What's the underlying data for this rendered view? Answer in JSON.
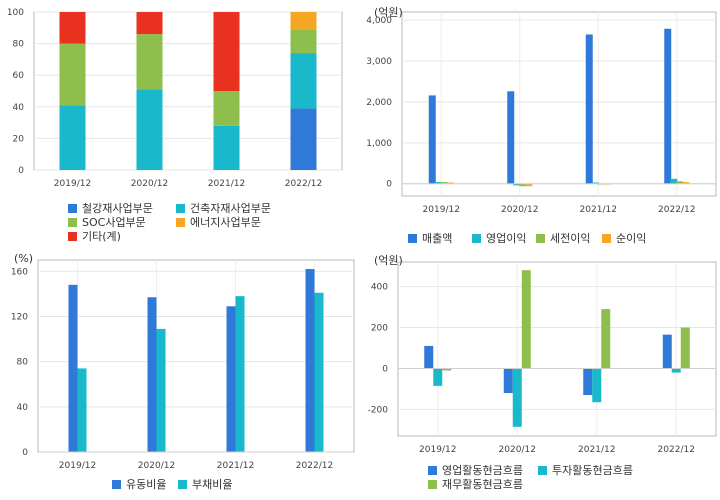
{
  "chart_data": [
    {
      "type": "bar",
      "stacked": true,
      "categories": [
        "2019/12",
        "2020/12",
        "2021/12",
        "2022/12"
      ],
      "ylim": [
        0,
        100
      ],
      "yticks": [
        "0",
        "20",
        "40",
        "60",
        "80",
        "100"
      ],
      "series": [
        {
          "name": "철강재사업부문",
          "color": "#2f7ad8",
          "values": [
            0,
            0,
            0,
            39
          ]
        },
        {
          "name": "건축자재사업부문",
          "color": "#19b8cb",
          "values": [
            41,
            51,
            28,
            35
          ]
        },
        {
          "name": "SOC사업부문",
          "color": "#8ebf4c",
          "values": [
            39,
            35,
            22,
            15
          ]
        },
        {
          "name": "에너지사업부문",
          "color": "#f5a623",
          "values": [
            0,
            0,
            0,
            11
          ]
        },
        {
          "name": "기타(계)",
          "color": "#e8311f",
          "values": [
            20,
            14,
            50,
            0
          ]
        }
      ],
      "legend_position": "bottom",
      "grid": true
    },
    {
      "type": "bar",
      "unit": "(억원)",
      "categories": [
        "2019/12",
        "2020/12",
        "2021/12",
        "2022/12"
      ],
      "ylim": [
        -300,
        4200
      ],
      "yticks": [
        "0",
        "1,000",
        "2,000",
        "3,000",
        "4,000"
      ],
      "series": [
        {
          "name": "매출액",
          "color": "#2f7ad8",
          "values": [
            2160,
            2260,
            3650,
            3790
          ]
        },
        {
          "name": "영업이익",
          "color": "#19b8cb",
          "values": [
            40,
            -40,
            30,
            120
          ]
        },
        {
          "name": "세전이익",
          "color": "#8ebf4c",
          "values": [
            40,
            -60,
            0,
            60
          ]
        },
        {
          "name": "순이익",
          "color": "#f5a623",
          "values": [
            30,
            -60,
            0,
            40
          ]
        }
      ],
      "legend_position": "bottom",
      "grid": true
    },
    {
      "type": "bar",
      "unit": "(%)",
      "categories": [
        "2019/12",
        "2020/12",
        "2021/12",
        "2022/12"
      ],
      "ylim": [
        0,
        170
      ],
      "yticks": [
        "0",
        "40",
        "80",
        "120",
        "160"
      ],
      "series": [
        {
          "name": "유동비율",
          "color": "#2f7ad8",
          "values": [
            148,
            137,
            129,
            162
          ]
        },
        {
          "name": "부채비율",
          "color": "#19b8cb",
          "values": [
            74,
            109,
            138,
            141
          ]
        }
      ],
      "legend_position": "bottom",
      "grid": true
    },
    {
      "type": "bar",
      "unit": "(억원)",
      "categories": [
        "2019/12",
        "2020/12",
        "2021/12",
        "2022/12"
      ],
      "ylim": [
        -330,
        520
      ],
      "yticks": [
        "-200",
        "0",
        "200",
        "400"
      ],
      "series": [
        {
          "name": "영업활동현금흐름",
          "color": "#2f7ad8",
          "values": [
            110,
            -120,
            -130,
            165
          ]
        },
        {
          "name": "투자활동현금흐름",
          "color": "#19b8cb",
          "values": [
            -85,
            -285,
            -165,
            -20
          ]
        },
        {
          "name": "재무활동현금흐름",
          "color": "#8ebf4c",
          "values": [
            -10,
            480,
            290,
            200
          ]
        }
      ],
      "legend_position": "bottom",
      "grid": true
    }
  ]
}
